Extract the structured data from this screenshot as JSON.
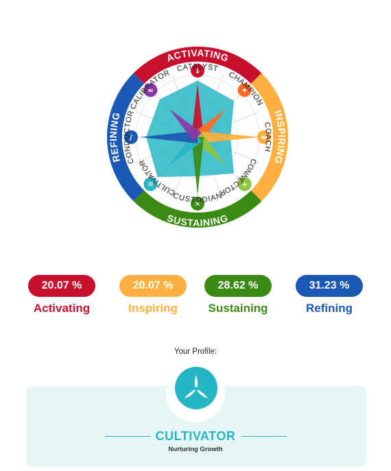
{
  "chart_data": {
    "type": "radar",
    "title": "",
    "axes": [
      "CATALYST",
      "CHAMPION",
      "COACH",
      "CONNECTOR",
      "CUSTODIAN",
      "CULTIVATOR",
      "CONDUCTOR",
      "CALIBRATOR"
    ],
    "series": [
      {
        "name": "",
        "values": [
          5.5,
          5.0,
          3.2,
          5.0,
          3.8,
          5.5,
          5.0,
          5.2
        ]
      }
    ],
    "style_colors": {
      "CATALYST": "#c8102e",
      "CHAMPION": "#ff6a26",
      "COACH": "#ffaf3f",
      "CONNECTOR": "#8fc63f",
      "CUSTODIAN": "#3a8a14",
      "CULTIVATOR": "#25b5c5",
      "CONDUCTOR": "#1a58b4",
      "CALIBRATOR": "#8b37a8"
    },
    "star_lengths": [
      0.78,
      0.55,
      0.93,
      0.55,
      0.85,
      0.55,
      0.85,
      0.55
    ],
    "quadrants": [
      {
        "label": "ACTIVATING",
        "color": "#c8102e"
      },
      {
        "label": "INSPIRING",
        "color": "#ffaf3f"
      },
      {
        "label": "SUSTAINING",
        "color": "#3a8a14"
      },
      {
        "label": "REFINING",
        "color": "#1a58b4"
      }
    ],
    "rmax": 6,
    "polygon_color": "#2ab7c6",
    "grid": true
  },
  "percentages": [
    {
      "value": "20.07 %",
      "label": "Activating",
      "color": "#c8102e"
    },
    {
      "value": "20.07 %",
      "label": "Inspiring",
      "color": "#ffaf3f"
    },
    {
      "value": "28.62 %",
      "label": "Sustaining",
      "color": "#3a8a14"
    },
    {
      "value": "31.23 %",
      "label": "Refining",
      "color": "#1a58b4"
    }
  ],
  "profile": {
    "label": "Your Profile:",
    "name": "CULTIVATOR",
    "tagline": "Nurturing Growth",
    "icon": "cultivator-icon",
    "color": "#25b5c5"
  }
}
